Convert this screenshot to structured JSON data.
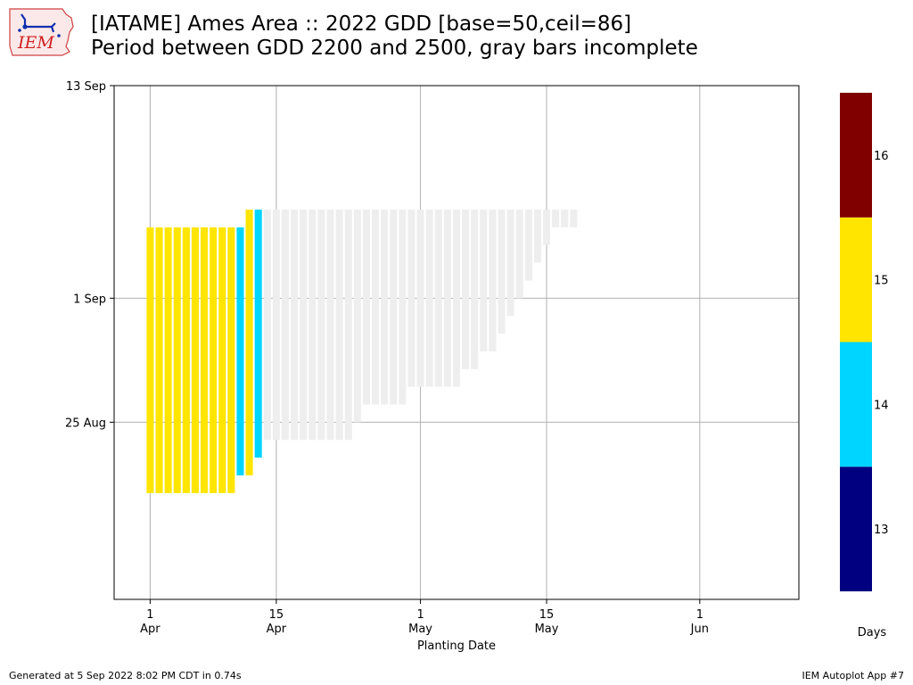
{
  "header": {
    "logo_text": "IEM",
    "title_line1": "[IATAME] Ames Area :: 2022 GDD [base=50,ceil=86]",
    "title_line2": "Period between GDD 2200 and 2500, gray bars incomplete"
  },
  "footer": {
    "generated": "Generated at 5 Sep 2022 8:02 PM CDT in 0.74s",
    "app": "IEM Autoplot App #7"
  },
  "colors": {
    "grid": "#b0b0b0",
    "incomplete": "#eeeeee",
    "colorbar": [
      "#000080",
      "#00d5ff",
      "#ffe500",
      "#800000"
    ]
  },
  "chart_data": {
    "type": "bar",
    "xlabel": "Planting Date",
    "x_range": [
      "2022-03-28",
      "2022-06-12"
    ],
    "y_range": [
      "2022-08-15",
      "2022-09-13"
    ],
    "grid": true,
    "x_ticks": [
      {
        "date": "2022-04-01",
        "day": "1",
        "month": "Apr"
      },
      {
        "date": "2022-04-15",
        "day": "15",
        "month": "Apr"
      },
      {
        "date": "2022-05-01",
        "day": "1",
        "month": "May"
      },
      {
        "date": "2022-05-15",
        "day": "15",
        "month": "May"
      },
      {
        "date": "2022-06-01",
        "day": "1",
        "month": "Jun"
      }
    ],
    "y_ticks": [
      {
        "date": "2022-08-25",
        "label": "25 Aug"
      },
      {
        "date": "2022-09-01",
        "label": "1 Sep"
      },
      {
        "date": "2022-09-13",
        "label": "13 Sep"
      }
    ],
    "bars": [
      {
        "planting": "2022-04-01",
        "start": "2022-08-21",
        "end": "2022-09-05",
        "days": 15,
        "complete": true
      },
      {
        "planting": "2022-04-02",
        "start": "2022-08-21",
        "end": "2022-09-05",
        "days": 15,
        "complete": true
      },
      {
        "planting": "2022-04-03",
        "start": "2022-08-21",
        "end": "2022-09-05",
        "days": 15,
        "complete": true
      },
      {
        "planting": "2022-04-04",
        "start": "2022-08-21",
        "end": "2022-09-05",
        "days": 15,
        "complete": true
      },
      {
        "planting": "2022-04-05",
        "start": "2022-08-21",
        "end": "2022-09-05",
        "days": 15,
        "complete": true
      },
      {
        "planting": "2022-04-06",
        "start": "2022-08-21",
        "end": "2022-09-05",
        "days": 15,
        "complete": true
      },
      {
        "planting": "2022-04-07",
        "start": "2022-08-21",
        "end": "2022-09-05",
        "days": 15,
        "complete": true
      },
      {
        "planting": "2022-04-08",
        "start": "2022-08-21",
        "end": "2022-09-05",
        "days": 15,
        "complete": true
      },
      {
        "planting": "2022-04-09",
        "start": "2022-08-21",
        "end": "2022-09-05",
        "days": 15,
        "complete": true
      },
      {
        "planting": "2022-04-10",
        "start": "2022-08-21",
        "end": "2022-09-05",
        "days": 15,
        "complete": true
      },
      {
        "planting": "2022-04-11",
        "start": "2022-08-22",
        "end": "2022-09-05",
        "days": 14,
        "complete": true
      },
      {
        "planting": "2022-04-12",
        "start": "2022-08-22",
        "end": "2022-09-06",
        "days": 15,
        "complete": true
      },
      {
        "planting": "2022-04-13",
        "start": "2022-08-23",
        "end": "2022-09-06",
        "days": 14,
        "complete": true
      },
      {
        "planting": "2022-04-14",
        "start": "2022-08-24",
        "end": "2022-09-06",
        "complete": false
      },
      {
        "planting": "2022-04-15",
        "start": "2022-08-24",
        "end": "2022-09-06",
        "complete": false
      },
      {
        "planting": "2022-04-16",
        "start": "2022-08-24",
        "end": "2022-09-06",
        "complete": false
      },
      {
        "planting": "2022-04-17",
        "start": "2022-08-24",
        "end": "2022-09-06",
        "complete": false
      },
      {
        "planting": "2022-04-18",
        "start": "2022-08-24",
        "end": "2022-09-06",
        "complete": false
      },
      {
        "planting": "2022-04-19",
        "start": "2022-08-24",
        "end": "2022-09-06",
        "complete": false
      },
      {
        "planting": "2022-04-20",
        "start": "2022-08-24",
        "end": "2022-09-06",
        "complete": false
      },
      {
        "planting": "2022-04-21",
        "start": "2022-08-24",
        "end": "2022-09-06",
        "complete": false
      },
      {
        "planting": "2022-04-22",
        "start": "2022-08-24",
        "end": "2022-09-06",
        "complete": false
      },
      {
        "planting": "2022-04-23",
        "start": "2022-08-24",
        "end": "2022-09-06",
        "complete": false
      },
      {
        "planting": "2022-04-24",
        "start": "2022-08-25",
        "end": "2022-09-06",
        "complete": false
      },
      {
        "planting": "2022-04-25",
        "start": "2022-08-26",
        "end": "2022-09-06",
        "complete": false
      },
      {
        "planting": "2022-04-26",
        "start": "2022-08-26",
        "end": "2022-09-06",
        "complete": false
      },
      {
        "planting": "2022-04-27",
        "start": "2022-08-26",
        "end": "2022-09-06",
        "complete": false
      },
      {
        "planting": "2022-04-28",
        "start": "2022-08-26",
        "end": "2022-09-06",
        "complete": false
      },
      {
        "planting": "2022-04-29",
        "start": "2022-08-26",
        "end": "2022-09-06",
        "complete": false
      },
      {
        "planting": "2022-04-30",
        "start": "2022-08-27",
        "end": "2022-09-06",
        "complete": false
      },
      {
        "planting": "2022-05-01",
        "start": "2022-08-27",
        "end": "2022-09-06",
        "complete": false
      },
      {
        "planting": "2022-05-02",
        "start": "2022-08-27",
        "end": "2022-09-06",
        "complete": false
      },
      {
        "planting": "2022-05-03",
        "start": "2022-08-27",
        "end": "2022-09-06",
        "complete": false
      },
      {
        "planting": "2022-05-04",
        "start": "2022-08-27",
        "end": "2022-09-06",
        "complete": false
      },
      {
        "planting": "2022-05-05",
        "start": "2022-08-27",
        "end": "2022-09-06",
        "complete": false
      },
      {
        "planting": "2022-05-06",
        "start": "2022-08-28",
        "end": "2022-09-06",
        "complete": false
      },
      {
        "planting": "2022-05-07",
        "start": "2022-08-28",
        "end": "2022-09-06",
        "complete": false
      },
      {
        "planting": "2022-05-08",
        "start": "2022-08-29",
        "end": "2022-09-06",
        "complete": false
      },
      {
        "planting": "2022-05-09",
        "start": "2022-08-29",
        "end": "2022-09-06",
        "complete": false
      },
      {
        "planting": "2022-05-10",
        "start": "2022-08-30",
        "end": "2022-09-06",
        "complete": false
      },
      {
        "planting": "2022-05-11",
        "start": "2022-08-31",
        "end": "2022-09-06",
        "complete": false
      },
      {
        "planting": "2022-05-12",
        "start": "2022-09-01",
        "end": "2022-09-06",
        "complete": false
      },
      {
        "planting": "2022-05-13",
        "start": "2022-09-02",
        "end": "2022-09-06",
        "complete": false
      },
      {
        "planting": "2022-05-14",
        "start": "2022-09-03",
        "end": "2022-09-06",
        "complete": false
      },
      {
        "planting": "2022-05-15",
        "start": "2022-09-04",
        "end": "2022-09-06",
        "complete": false
      },
      {
        "planting": "2022-05-16",
        "start": "2022-09-05",
        "end": "2022-09-06",
        "complete": false
      },
      {
        "planting": "2022-05-17",
        "start": "2022-09-05",
        "end": "2022-09-06",
        "complete": false
      },
      {
        "planting": "2022-05-18",
        "start": "2022-09-05",
        "end": "2022-09-06",
        "complete": false
      }
    ],
    "colorbar": {
      "label": "Days",
      "levels": [
        13,
        14,
        15,
        16
      ]
    }
  }
}
